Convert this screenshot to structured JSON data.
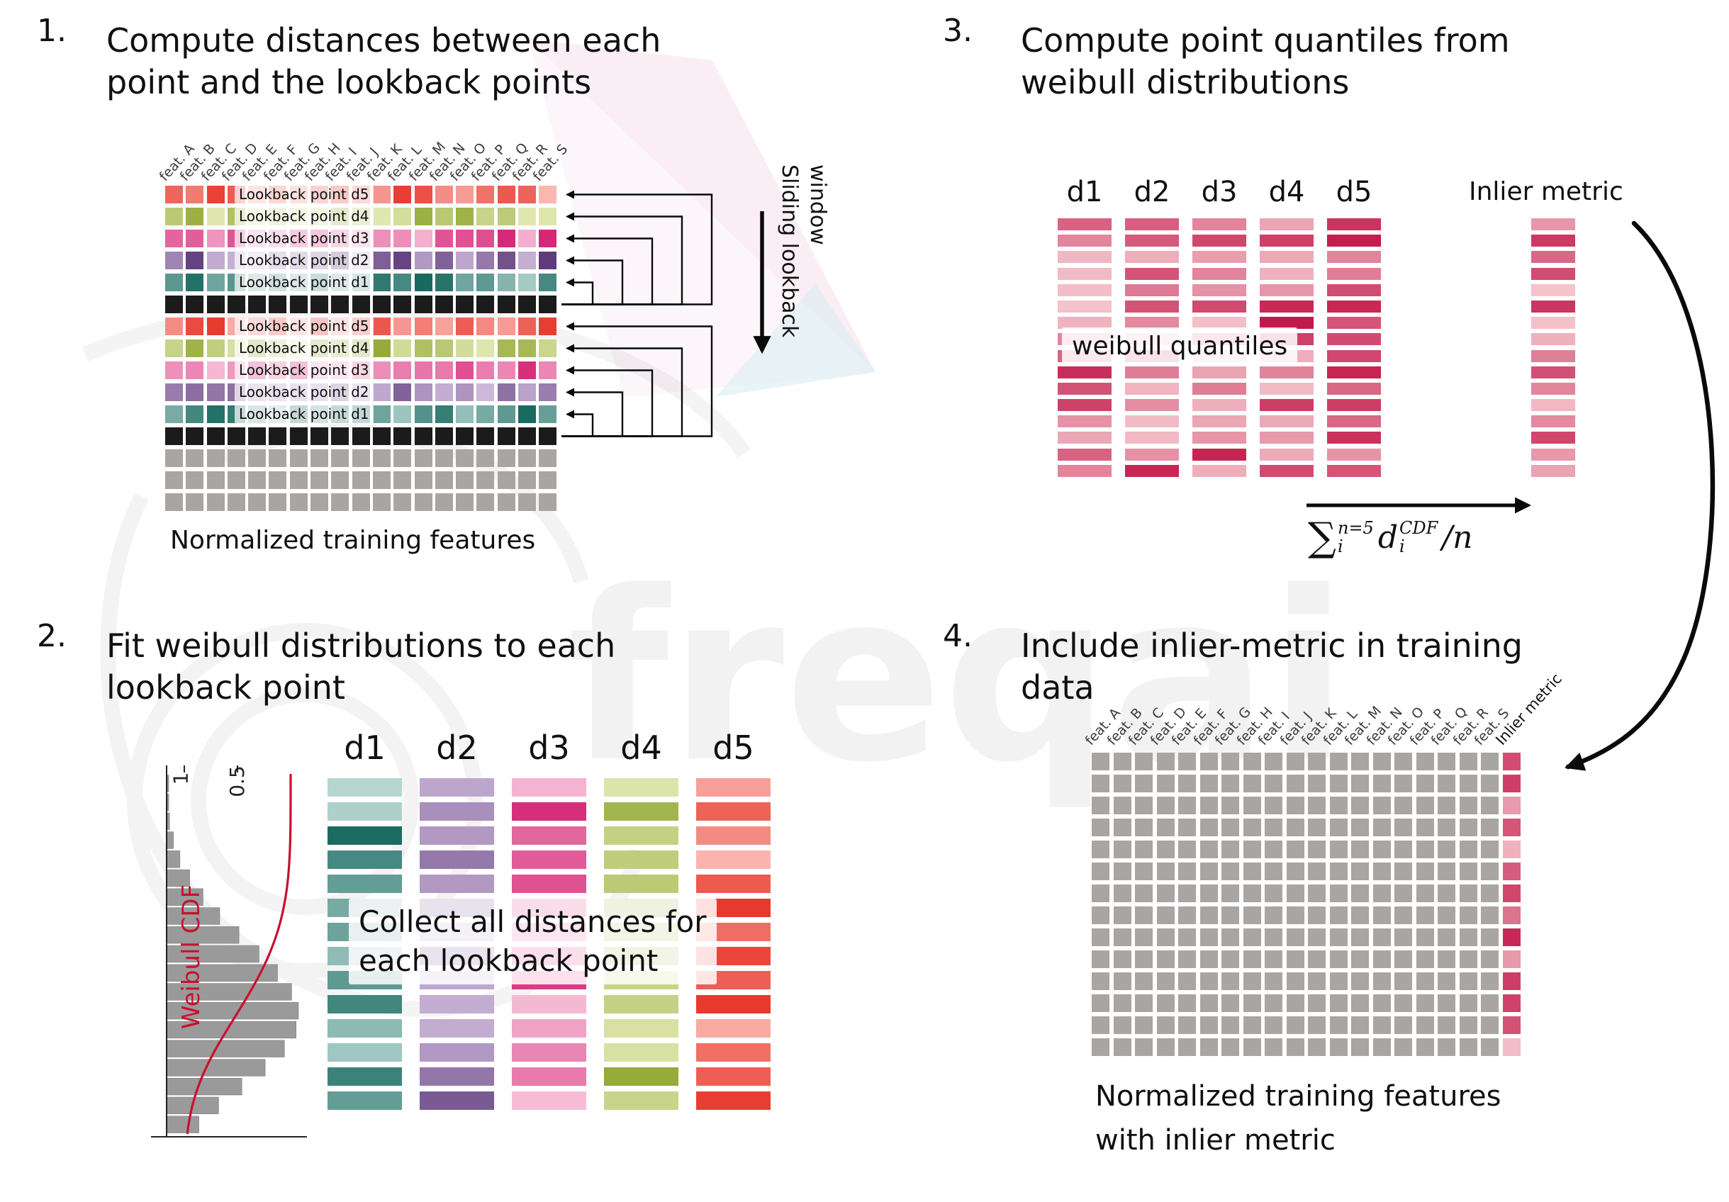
{
  "colors": {
    "d1": {
      "light": "#c2ded9",
      "dark": "#17685f",
      "base": "#4e948c"
    },
    "d2": {
      "light": "#dcc9e6",
      "dark": "#5e3a7c",
      "base": "#8f63a8"
    },
    "d3": {
      "light": "#f9c9de",
      "dark": "#d41f72",
      "base": "#e8619c"
    },
    "d4": {
      "light": "#e9efbf",
      "dark": "#8fa52e",
      "base": "#b7c85a"
    },
    "d5": {
      "light": "#fcc3bd",
      "dark": "#e62e22",
      "base": "#f4564c"
    },
    "quant": {
      "light": "#f7ced4",
      "dark": "#c2184a",
      "base": "#d94f63"
    },
    "black": "#1b1b1b",
    "gray": "#a9a5a2",
    "cdf_red": "#c8102e",
    "arrow": "#0a0a0a"
  },
  "watermark": {
    "text": "freqai"
  },
  "section1": {
    "number": "1.",
    "title": [
      "Compute distances between each",
      "point and the lookback points"
    ],
    "features": [
      "feat. A",
      "feat. B",
      "feat. C",
      "feat. D",
      "feat. E",
      "feat. F",
      "feat. G",
      "feat. H",
      "feat. I",
      "feat. J",
      "feat. K",
      "feat. L",
      "feat. M",
      "feat. N",
      "feat. O",
      "feat. P",
      "feat. Q",
      "feat. R",
      "feat. S"
    ],
    "grid_rows": [
      "d5",
      "d4",
      "d3",
      "d2",
      "d1",
      "black",
      "d5",
      "d4",
      "d3",
      "d2",
      "d1",
      "black",
      "gray",
      "gray",
      "gray"
    ],
    "row_labels": [
      {
        "row": 0,
        "text": "Lookback point d5"
      },
      {
        "row": 1,
        "text": "Lookback point d4"
      },
      {
        "row": 2,
        "text": "Lookback point d3"
      },
      {
        "row": 3,
        "text": "Lookback point d2"
      },
      {
        "row": 4,
        "text": "Lookback point d1"
      },
      {
        "row": 6,
        "text": "Lookback point d5"
      },
      {
        "row": 7,
        "text": "Lookback point d4"
      },
      {
        "row": 8,
        "text": "Lookback point d3"
      },
      {
        "row": 9,
        "text": "Lookback point d2"
      },
      {
        "row": 10,
        "text": "Lookback point d1"
      }
    ],
    "caption": "Normalized training features",
    "sliding_label": [
      "Sliding lookback",
      "window"
    ]
  },
  "section2": {
    "number": "2.",
    "title": [
      "Fit weibull distributions to each",
      "lookback point"
    ],
    "columns": [
      "d1",
      "d2",
      "d3",
      "d4",
      "d5"
    ],
    "bar_count": 14,
    "overlay": [
      "Collect all distances for",
      "each lookback point"
    ],
    "cdf_label": "Weibull CDF",
    "ticks": [
      "1",
      "0.5"
    ]
  },
  "section3": {
    "number": "3.",
    "title": [
      "Compute point quantiles from",
      "weibull distributions"
    ],
    "columns": [
      "d1",
      "d2",
      "d3",
      "d4",
      "d5"
    ],
    "bar_count": 16,
    "overlay": "weibull quantiles",
    "inlier_label": "Inlier metric",
    "formula": {
      "sum": "∑",
      "sum_sup": "n=5",
      "sum_sub": "i",
      "term": "d",
      "term_sup": "CDF",
      "term_sub": "i",
      "divisor": "/n"
    }
  },
  "section4": {
    "number": "4.",
    "title": [
      "Include inlier-metric in training",
      "data"
    ],
    "features": [
      "feat. A",
      "feat. B",
      "feat. C",
      "feat. D",
      "feat. E",
      "feat. F",
      "feat. G",
      "feat. H",
      "feat. I",
      "feat. J",
      "feat. K",
      "feat. L",
      "feat. M",
      "feat. N",
      "feat. O",
      "feat. P",
      "feat. Q",
      "feat. R",
      "feat. S"
    ],
    "inlier_label": "Inlier metric",
    "grid": {
      "rows": 14,
      "cols": 19
    },
    "caption": [
      "Normalized training features",
      "with inlier metric"
    ]
  }
}
